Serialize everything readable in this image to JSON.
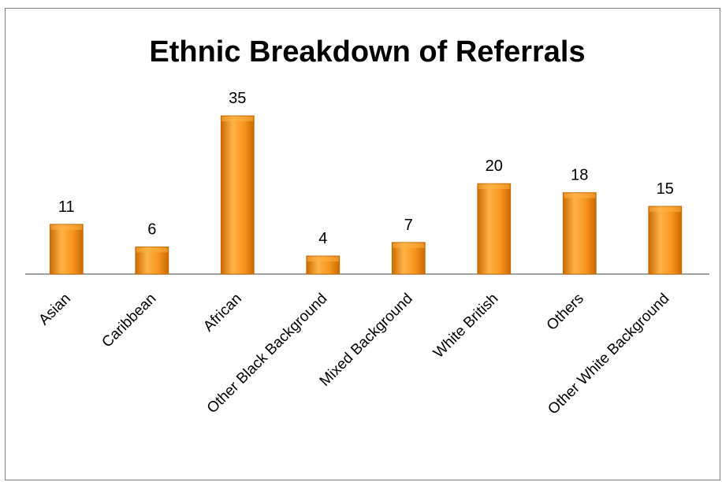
{
  "chart_data": {
    "type": "bar",
    "title": "Ethnic Breakdown of Referrals",
    "xlabel": "",
    "ylabel": "",
    "categories": [
      "Asian",
      "Caribbean",
      "African",
      "Other Black Background",
      "Mixed Background",
      "White British",
      "Others",
      "Other White Background"
    ],
    "values": [
      11,
      6,
      35,
      4,
      7,
      20,
      18,
      15
    ],
    "ylim": [
      0,
      35
    ],
    "grid": false,
    "legend": "none",
    "colors": {
      "bar_light": "#FFB347",
      "bar_mid": "#F7941D",
      "bar_dark": "#C96A00",
      "axis": "#808080"
    }
  }
}
